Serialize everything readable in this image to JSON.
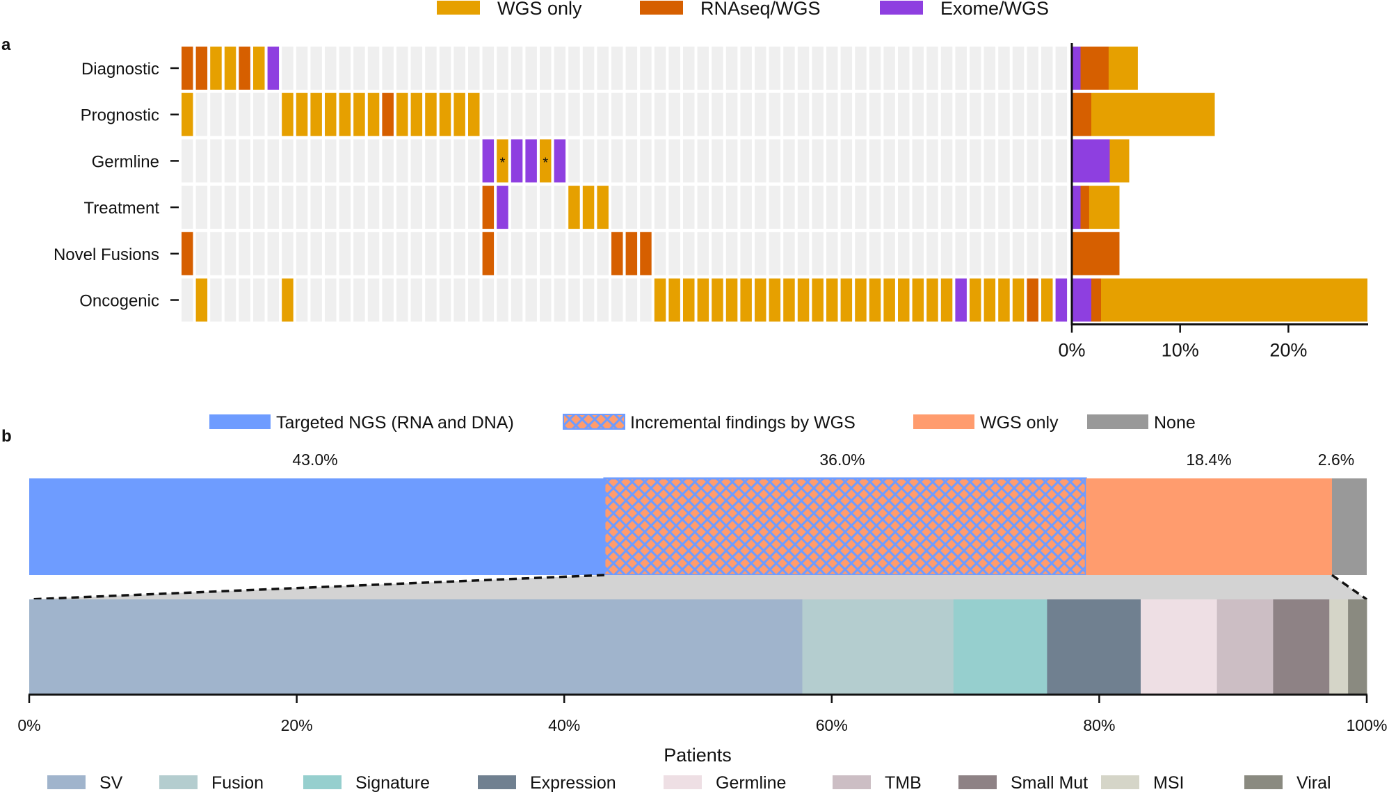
{
  "colors": {
    "wgs_only": "#E6A000",
    "rnaseq_wgs": "#D65F00",
    "exome_wgs": "#8E3FE0",
    "empty_cell": "#EFEFEF",
    "targeted": "#6E9CFF",
    "incremental_fill": "#FF9C6E",
    "incremental_hatch": "#6E9CFF",
    "wgs_only_b": "#FF9C6E",
    "none": "#999999",
    "zoom_band": "#D3D3D3"
  },
  "panel_a": {
    "panel_label": "a",
    "legend": [
      {
        "label": "WGS only",
        "key": "W"
      },
      {
        "label": "RNAseq/WGS",
        "key": "R"
      },
      {
        "label": "Exome/WGS",
        "key": "E"
      }
    ],
    "n_columns": 62,
    "rows": [
      {
        "label": "Diagnostic",
        "cells": {
          "0": "R",
          "1": "R",
          "2": "W",
          "3": "W",
          "4": "R",
          "5": "W",
          "6": "E"
        }
      },
      {
        "label": "Prognostic",
        "cells": {
          "0": "W",
          "7": "W",
          "8": "W",
          "9": "W",
          "10": "W",
          "11": "W",
          "12": "W",
          "13": "W",
          "14": "R",
          "15": "W",
          "16": "W",
          "17": "W",
          "18": "W",
          "19": "W",
          "20": "W"
        }
      },
      {
        "label": "Germline",
        "cells": {
          "21": "E",
          "22": "W*",
          "23": "E",
          "24": "E",
          "25": "W*",
          "26": "E"
        }
      },
      {
        "label": "Treatment",
        "cells": {
          "21": "R",
          "22": "E",
          "27": "W",
          "28": "W",
          "29": "W"
        }
      },
      {
        "label": "Novel Fusions",
        "cells": {
          "0": "R",
          "21": "R",
          "30": "R",
          "31": "R",
          "32": "R"
        }
      },
      {
        "label": "Oncogenic",
        "cells": {
          "1": "W",
          "7": "W",
          "33": "W",
          "34": "W",
          "35": "W",
          "36": "W",
          "37": "W",
          "38": "W",
          "39": "W",
          "40": "W",
          "41": "W",
          "42": "W",
          "43": "W",
          "44": "W",
          "45": "W",
          "46": "W",
          "47": "W",
          "48": "W",
          "49": "W",
          "50": "W",
          "51": "W",
          "52": "W",
          "53": "W",
          "54": "E",
          "55": "W",
          "56": "W",
          "57": "W",
          "58": "W",
          "59": "R",
          "60": "W",
          "61": "E"
        }
      }
    ],
    "asterisk": "*"
  },
  "chart_data": [
    {
      "type": "bar",
      "orientation": "horizontal-stacked",
      "title": "",
      "categories": [
        "Diagnostic",
        "Prognostic",
        "Germline",
        "Treatment",
        "Novel Fusions",
        "Oncogenic"
      ],
      "series": [
        {
          "name": "Exome/WGS",
          "key": "E",
          "values": [
            0.8,
            0.0,
            3.5,
            0.8,
            0.0,
            1.8
          ]
        },
        {
          "name": "RNAseq/WGS",
          "key": "R",
          "values": [
            2.6,
            1.8,
            0.0,
            0.8,
            4.4,
            0.9
          ]
        },
        {
          "name": "WGS only",
          "key": "W",
          "values": [
            2.7,
            11.4,
            1.8,
            2.8,
            0.0,
            24.6
          ]
        }
      ],
      "xlim": [
        0,
        27.3
      ],
      "xticks": [
        0,
        10,
        20
      ],
      "xtick_labels": [
        "0%",
        "10%",
        "20%"
      ]
    },
    {
      "type": "bar",
      "orientation": "horizontal-stacked",
      "title": "",
      "xlabel": "Patients",
      "xlim": [
        0,
        100
      ],
      "xticks": [
        0,
        20,
        40,
        60,
        80,
        100
      ],
      "xtick_labels": [
        "0%",
        "20%",
        "40%",
        "60%",
        "80%",
        "100%"
      ],
      "top_bar": [
        {
          "name": "Targeted NGS (RNA and DNA)",
          "value": 43.0,
          "label": "43.0%"
        },
        {
          "name": "Incremental findings by WGS",
          "value": 36.0,
          "label": "36.0%"
        },
        {
          "name": "WGS only",
          "value": 18.4,
          "label": "18.4%"
        },
        {
          "name": "None",
          "value": 2.6,
          "label": "2.6%"
        }
      ],
      "bottom_bar": [
        {
          "name": "SV",
          "value": 57.8,
          "color": "#A0B4CC"
        },
        {
          "name": "Fusion",
          "value": 11.3,
          "color": "#B4CDCF"
        },
        {
          "name": "Signature",
          "value": 7.0,
          "color": "#96CFCE"
        },
        {
          "name": "Expression",
          "value": 7.0,
          "color": "#708090"
        },
        {
          "name": "Germline",
          "value": 5.7,
          "color": "#EEDFE4"
        },
        {
          "name": "TMB",
          "value": 4.2,
          "color": "#CCBEC4"
        },
        {
          "name": "Small Mut",
          "value": 4.2,
          "color": "#8E8285"
        },
        {
          "name": "MSI",
          "value": 1.4,
          "color": "#D5D5C8"
        },
        {
          "name": "Viral",
          "value": 1.4,
          "color": "#8A8A80"
        }
      ]
    }
  ],
  "panel_b": {
    "panel_label": "b",
    "legend": [
      {
        "label": "Targeted NGS (RNA and DNA)",
        "style": "targeted"
      },
      {
        "label": "Incremental findings by WGS",
        "style": "incremental"
      },
      {
        "label": "WGS only",
        "style": "wgs_only_b"
      },
      {
        "label": "None",
        "style": "none"
      }
    ]
  }
}
